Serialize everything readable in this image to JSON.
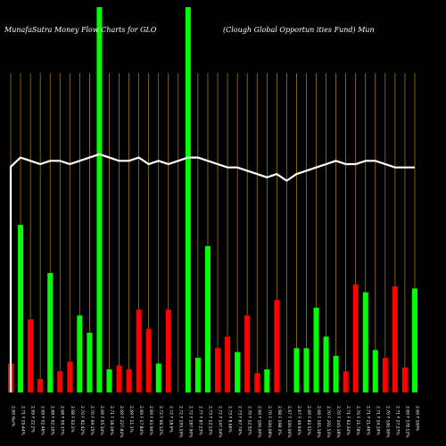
{
  "chart_data": {
    "type": "bar",
    "title_left": "MunafaSutra  Money Flow  Charts for GLO",
    "title_right": "(Clough Global Opportun                    ities Fund) Mun",
    "colors": {
      "background": "#000000",
      "up": "#00ff00",
      "down": "#ff0000",
      "grid": "#b8860b",
      "line": "#ffffff"
    },
    "ylim": [
      0,
      100
    ],
    "categories": [
      "2.69 Yes%",
      "2.71 Y 29.44%",
      "2.69 F 22.2%",
      "2.69 F 02.46%",
      "2.68 F 02.10%",
      "2.68 F 59.37%",
      "2.68 F 02.1%",
      "2.70 F 82.42%",
      "2.70 F 69.15%",
      "2.69 F 05.34%",
      "2.71 F 18.19%",
      "2.69 F 227.84%",
      "2.69 F 11.1%",
      "2.69 F 17.84%",
      "2.69 F 63.90%",
      "2.72 F 66.12%",
      "2.72 F 18.9%",
      "2.72 F 195.19%",
      "2.72 F 187.90%",
      "2.77 F 87.23%",
      "2.73 F 12.13%",
      "2.72 F 147.04%",
      "2.73 F 8.66%",
      "2.73 F 67.74%",
      "2.70 F 12.52%",
      "2.69 F 100.00%",
      "2.70 F 100.08%",
      "2.68 F 198.3%",
      "2.67 F 100.00%",
      "2.67 F 49.64%",
      "2.69 F 82.51%",
      "2.68 F 165.18%",
      "2.70 F 202.53%",
      "2.70 F 245.18%",
      "2.71 F 62.34%",
      "2.70 F 21.78%",
      "2.71 F 21.46%",
      "2.71 F 24.19%",
      "2.70 F 100.00%",
      "2.71 F 27.27%",
      "2.69 F 178.12%",
      "2.69 F 100%"
    ],
    "series": [
      {
        "values": [
          15,
          0,
          0,
          0,
          0,
          0,
          0,
          0,
          0,
          0,
          0,
          0,
          0,
          0,
          0,
          0,
          0,
          0,
          0,
          0,
          0,
          0,
          0,
          0,
          0,
          0,
          0,
          0,
          0,
          0,
          0,
          0,
          0,
          0,
          0,
          0,
          0,
          0,
          0,
          0,
          0,
          0
        ]
      }
    ],
    "bars": [
      {
        "c": "r",
        "v": 15
      },
      {
        "c": "g",
        "v": 87
      },
      {
        "c": "r",
        "v": 38
      },
      {
        "c": "r",
        "v": 7
      },
      {
        "c": "g",
        "v": 62
      },
      {
        "c": "r",
        "v": 11
      },
      {
        "c": "r",
        "v": 16
      },
      {
        "c": "g",
        "v": 40
      },
      {
        "c": "g",
        "v": 31
      },
      {
        "c": "g",
        "v": 200
      },
      {
        "c": "g",
        "v": 12
      },
      {
        "c": "r",
        "v": 14
      },
      {
        "c": "r",
        "v": 12
      },
      {
        "c": "r",
        "v": 43
      },
      {
        "c": "r",
        "v": 33
      },
      {
        "c": "g",
        "v": 15
      },
      {
        "c": "r",
        "v": 43
      },
      {
        "c": "r",
        "v": 0
      },
      {
        "c": "g",
        "v": 200
      },
      {
        "c": "g",
        "v": 18
      },
      {
        "c": "g",
        "v": 76
      },
      {
        "c": "r",
        "v": 23
      },
      {
        "c": "r",
        "v": 29
      },
      {
        "c": "g",
        "v": 21
      },
      {
        "c": "r",
        "v": 40
      },
      {
        "c": "r",
        "v": 10
      },
      {
        "c": "g",
        "v": 12
      },
      {
        "c": "r",
        "v": 48
      },
      {
        "c": "r",
        "v": 0
      },
      {
        "c": "g",
        "v": 23
      },
      {
        "c": "g",
        "v": 23
      },
      {
        "c": "g",
        "v": 44
      },
      {
        "c": "g",
        "v": 29
      },
      {
        "c": "g",
        "v": 19
      },
      {
        "c": "r",
        "v": 11
      },
      {
        "c": "r",
        "v": 56
      },
      {
        "c": "g",
        "v": 52
      },
      {
        "c": "g",
        "v": 22
      },
      {
        "c": "r",
        "v": 18
      },
      {
        "c": "r",
        "v": 55
      },
      {
        "c": "r",
        "v": 13
      },
      {
        "c": "g",
        "v": 54
      }
    ],
    "line": [
      70,
      71,
      70,
      69,
      70,
      70,
      69,
      70,
      71,
      72,
      71,
      70,
      70,
      71,
      69,
      70,
      69,
      70,
      71,
      71,
      70,
      69,
      68,
      68,
      67,
      66,
      65,
      66,
      64,
      66,
      67,
      68,
      69,
      70,
      69,
      69,
      70,
      70,
      69,
      68,
      68,
      68
    ],
    "grid": true
  }
}
